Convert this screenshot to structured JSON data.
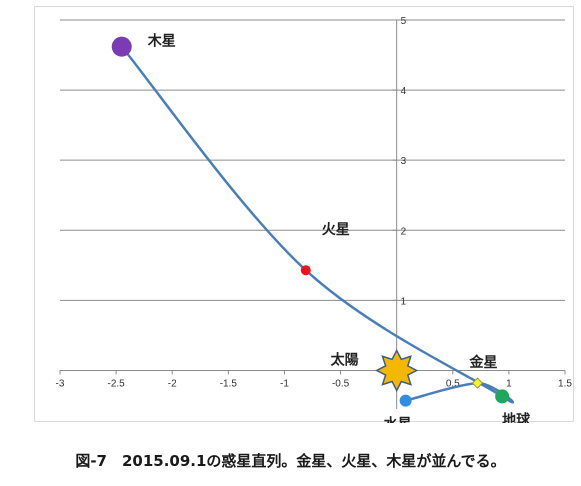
{
  "chart_data": {
    "type": "scatter",
    "title": "",
    "xlabel": "",
    "ylabel": "",
    "xlim": [
      -3,
      1.5
    ],
    "ylim": [
      -0.55,
      5
    ],
    "xticks": [
      -3,
      -2.5,
      -2,
      -1.5,
      -1,
      -0.5,
      0,
      0.5,
      1,
      1.5
    ],
    "xtick_labels": [
      "-3",
      "-2.5",
      "-2",
      "-1.5",
      "-1",
      "-0.5",
      "0",
      "0.5",
      "1",
      "1.5"
    ],
    "yticks": [
      1,
      2,
      3,
      4,
      5
    ],
    "ytick_labels": [
      "1",
      "2",
      "3",
      "4",
      "5"
    ],
    "grid": "horizontal",
    "line_color": "#4a7ebb",
    "points": [
      {
        "label": "太陽",
        "x": 0,
        "y": 0,
        "color": "#f5b800",
        "marker": "star"
      },
      {
        "label": "水星",
        "x": 0.08,
        "y": -0.43,
        "color": "#2e8fe0",
        "marker": "circle"
      },
      {
        "label": "金星",
        "x": 0.72,
        "y": -0.18,
        "color": "#f3f032",
        "marker": "diamond"
      },
      {
        "label": "地球",
        "x": 0.94,
        "y": -0.37,
        "color": "#1ea85b",
        "marker": "circle"
      },
      {
        "label": "火星",
        "x": -0.81,
        "y": 1.43,
        "color": "#e8141c",
        "marker": "circle"
      },
      {
        "label": "木星",
        "x": -2.45,
        "y": 4.62,
        "color": "#7a3bb3",
        "marker": "circle"
      }
    ],
    "curve": [
      {
        "x": 0.08,
        "y": -0.43
      },
      {
        "x": 0.72,
        "y": -0.18
      },
      {
        "x": 0.94,
        "y": -0.37
      },
      {
        "x": -0.81,
        "y": 1.43
      },
      {
        "x": -2.45,
        "y": 4.62
      }
    ]
  },
  "caption": "図-7　2015.09.1の惑星直列。金星、火星、木星が並んでる。"
}
